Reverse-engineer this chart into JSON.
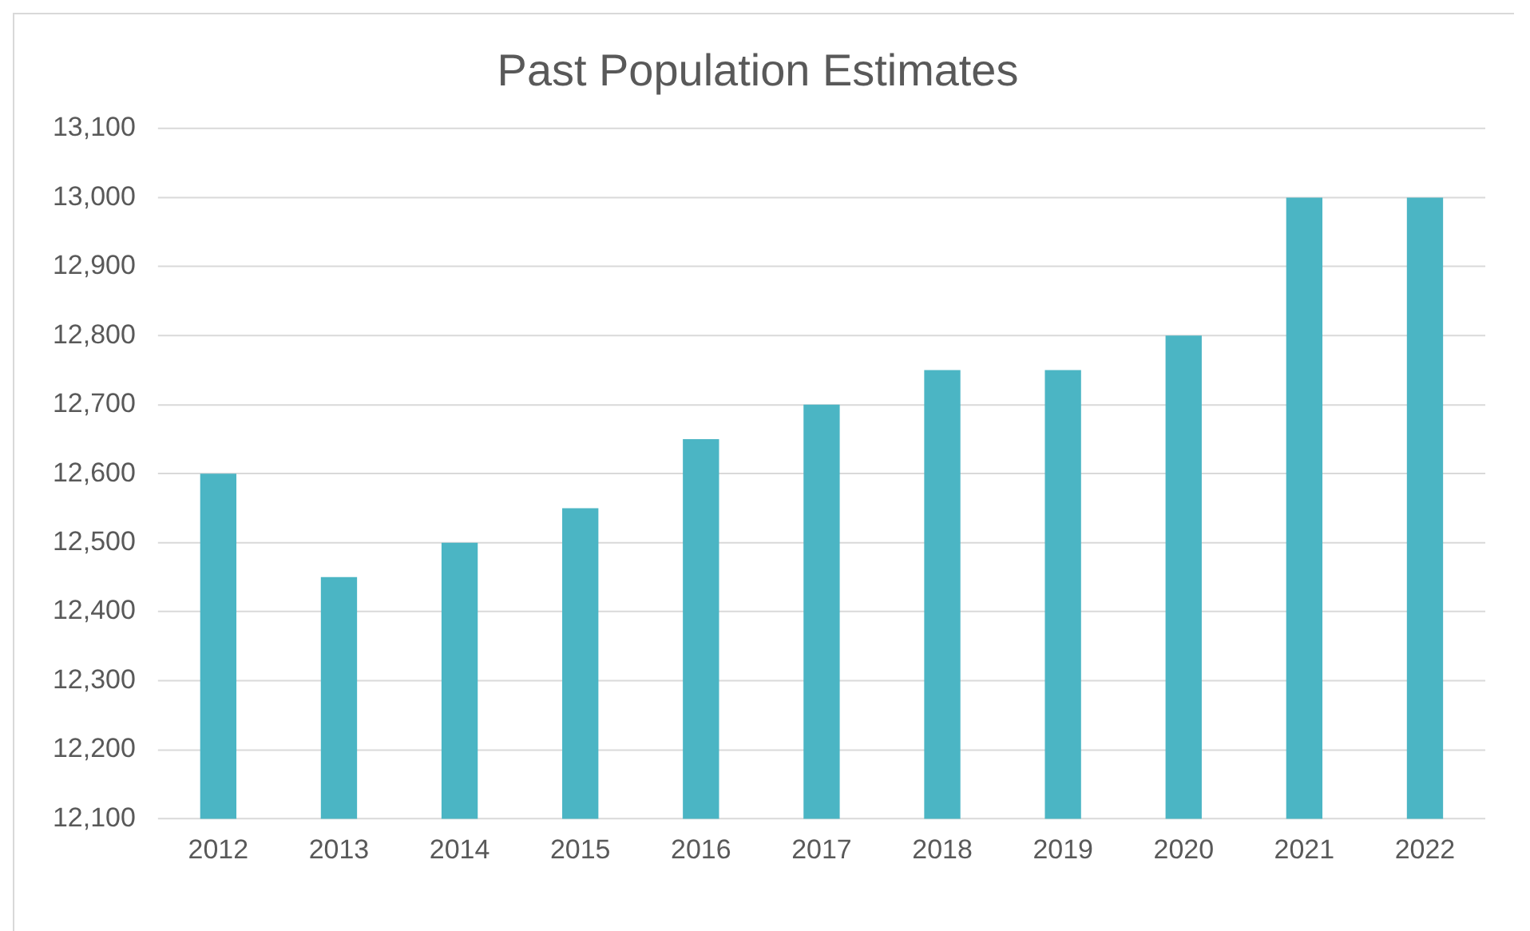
{
  "chart_data": {
    "type": "bar",
    "title": "Past Population Estimates",
    "categories": [
      "2012",
      "2013",
      "2014",
      "2015",
      "2016",
      "2017",
      "2018",
      "2019",
      "2020",
      "2021",
      "2022"
    ],
    "values": [
      12600,
      12450,
      12500,
      12550,
      12650,
      12700,
      12750,
      12750,
      12800,
      13000,
      13000
    ],
    "color": "#4bb5c4",
    "ylim": [
      12100,
      13100
    ],
    "yticks": [
      {
        "value": 12100,
        "label": "12,100"
      },
      {
        "value": 12200,
        "label": "12,200"
      },
      {
        "value": 12300,
        "label": "12,300"
      },
      {
        "value": 12400,
        "label": "12,400"
      },
      {
        "value": 12500,
        "label": "12,500"
      },
      {
        "value": 12600,
        "label": "12,600"
      },
      {
        "value": 12700,
        "label": "12,700"
      },
      {
        "value": 12800,
        "label": "12,800"
      },
      {
        "value": 12900,
        "label": "12,900"
      },
      {
        "value": 13000,
        "label": "13,000"
      },
      {
        "value": 13100,
        "label": "13,100"
      }
    ],
    "grid": "y",
    "legend": false
  }
}
